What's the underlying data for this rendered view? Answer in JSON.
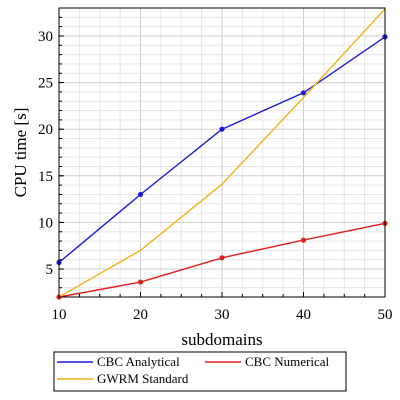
{
  "chart_data": {
    "type": "line",
    "xlabel": "subdomains",
    "ylabel": "CPU time [s]",
    "xlim": [
      10,
      50
    ],
    "ylim": [
      2,
      33
    ],
    "x_ticks": [
      10,
      20,
      30,
      40,
      50
    ],
    "y_ticks": [
      5,
      10,
      15,
      20,
      25,
      30
    ],
    "grid": true,
    "legend_position": "bottom",
    "x": [
      10,
      20,
      30,
      40,
      50
    ],
    "series": [
      {
        "name": "CBC Analytical",
        "color": "#1a1ad6",
        "markers": true,
        "values": [
          5.7,
          13.0,
          20.0,
          23.9,
          29.9
        ]
      },
      {
        "name": "CBC Numerical",
        "color": "#e32020",
        "markers": true,
        "values": [
          2.0,
          3.6,
          6.2,
          8.1,
          9.9
        ]
      },
      {
        "name": "GWRM Standard",
        "color": "#f5b21b",
        "markers": false,
        "values": [
          2.0,
          7.0,
          14.1,
          23.4,
          32.9
        ]
      }
    ]
  }
}
